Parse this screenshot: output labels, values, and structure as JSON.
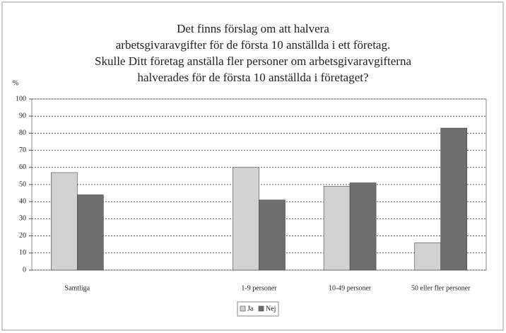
{
  "chart_data": {
    "type": "bar",
    "title": [
      "Det finns förslag om att halvera",
      "arbetsgivaravgifter för de första 10 anställda i ett företag.",
      "Skulle Ditt företag anställa fler personer om arbetsgivaravgifterna",
      "halverades för de första 10 anställda i företaget?"
    ],
    "y_label": "%",
    "categories": [
      "Samtliga",
      null,
      "1-9 personer",
      "10-49 personer",
      "50 eller fler personer"
    ],
    "series": [
      {
        "name": "Ja",
        "color": "#d2d2d2",
        "values": [
          57,
          null,
          60,
          49,
          16
        ]
      },
      {
        "name": "Nej",
        "color": "#6e6e6e",
        "values": [
          44,
          null,
          41,
          51,
          83
        ]
      }
    ],
    "ylim": [
      0,
      100
    ],
    "yticks": [
      0,
      10,
      20,
      30,
      40,
      50,
      60,
      70,
      80,
      90,
      100
    ],
    "grid": true,
    "legend": "bottom"
  }
}
